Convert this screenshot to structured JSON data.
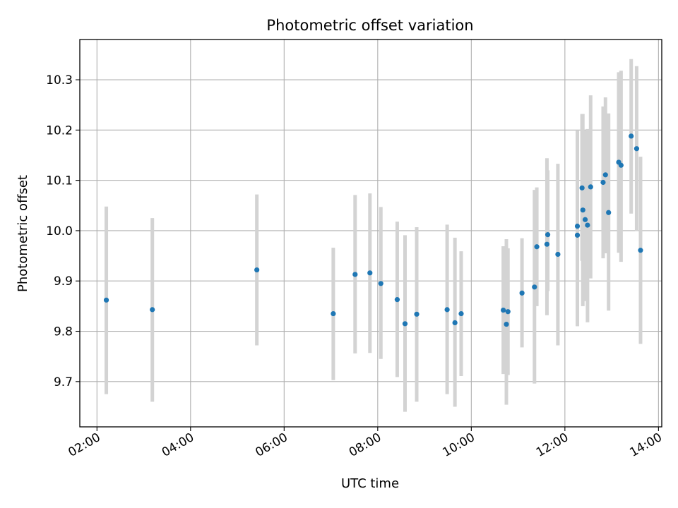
{
  "chart_data": {
    "type": "scatter",
    "title": "Photometric offset variation",
    "xlabel": "UTC time",
    "ylabel": "Photometric offset",
    "x_ticks": [
      "02:00",
      "04:00",
      "06:00",
      "08:00",
      "10:00",
      "12:00",
      "14:00"
    ],
    "y_ticks": [
      "9.7",
      "9.8",
      "9.9",
      "10.0",
      "10.1",
      "10.2",
      "10.3"
    ],
    "x_tick_values": [
      2,
      4,
      6,
      8,
      10,
      12,
      14
    ],
    "y_tick_values": [
      9.7,
      9.8,
      9.9,
      10.0,
      10.1,
      10.2,
      10.3
    ],
    "xlim": [
      "01:38",
      "14:00"
    ],
    "ylim": [
      9.61,
      10.38
    ],
    "grid": true,
    "colors": {
      "point": "#1f77b4",
      "errorbar": "#d3d3d3",
      "grid": "#b0b0b0",
      "axes": "#000000"
    },
    "points": [
      {
        "x": "02:12",
        "y": 9.862,
        "lo": 9.675,
        "hi": 10.048
      },
      {
        "x": "03:11",
        "y": 9.843,
        "lo": 9.66,
        "hi": 10.025
      },
      {
        "x": "05:25",
        "y": 9.922,
        "lo": 9.772,
        "hi": 10.072
      },
      {
        "x": "07:03",
        "y": 9.835,
        "lo": 9.703,
        "hi": 9.966
      },
      {
        "x": "07:31",
        "y": 9.913,
        "lo": 9.756,
        "hi": 10.071
      },
      {
        "x": "07:50",
        "y": 9.916,
        "lo": 9.757,
        "hi": 10.074
      },
      {
        "x": "08:04",
        "y": 9.895,
        "lo": 9.745,
        "hi": 10.047
      },
      {
        "x": "08:25",
        "y": 9.863,
        "lo": 9.709,
        "hi": 10.018
      },
      {
        "x": "08:35",
        "y": 9.815,
        "lo": 9.64,
        "hi": 9.991
      },
      {
        "x": "08:50",
        "y": 9.834,
        "lo": 9.66,
        "hi": 10.007
      },
      {
        "x": "09:29",
        "y": 9.843,
        "lo": 9.675,
        "hi": 10.012
      },
      {
        "x": "09:39",
        "y": 9.817,
        "lo": 9.65,
        "hi": 9.986
      },
      {
        "x": "09:47",
        "y": 9.835,
        "lo": 9.711,
        "hi": 9.959
      },
      {
        "x": "10:41",
        "y": 9.842,
        "lo": 9.715,
        "hi": 9.969
      },
      {
        "x": "10:45",
        "y": 9.814,
        "lo": 9.654,
        "hi": 9.983
      },
      {
        "x": "10:47",
        "y": 9.839,
        "lo": 9.713,
        "hi": 9.965
      },
      {
        "x": "11:05",
        "y": 9.876,
        "lo": 9.768,
        "hi": 9.985
      },
      {
        "x": "11:21",
        "y": 9.888,
        "lo": 9.696,
        "hi": 10.081
      },
      {
        "x": "11:24",
        "y": 9.968,
        "lo": 9.85,
        "hi": 10.086
      },
      {
        "x": "11:37",
        "y": 9.973,
        "lo": 9.832,
        "hi": 10.144
      },
      {
        "x": "11:38",
        "y": 9.992,
        "lo": 9.88,
        "hi": 10.12
      },
      {
        "x": "11:51",
        "y": 9.953,
        "lo": 9.772,
        "hi": 10.133
      },
      {
        "x": "12:16",
        "y": 9.991,
        "lo": 9.81,
        "hi": 10.172
      },
      {
        "x": "12:16",
        "y": 10.009,
        "lo": 9.815,
        "hi": 10.2
      },
      {
        "x": "12:22",
        "y": 10.085,
        "lo": 9.94,
        "hi": 10.232
      },
      {
        "x": "12:23",
        "y": 10.041,
        "lo": 9.85,
        "hi": 10.232
      },
      {
        "x": "12:26",
        "y": 10.022,
        "lo": 9.86,
        "hi": 10.2
      },
      {
        "x": "12:29",
        "y": 10.011,
        "lo": 9.818,
        "hi": 10.202
      },
      {
        "x": "12:33",
        "y": 10.087,
        "lo": 9.905,
        "hi": 10.269
      },
      {
        "x": "12:49",
        "y": 10.096,
        "lo": 9.945,
        "hi": 10.247
      },
      {
        "x": "12:52",
        "y": 10.111,
        "lo": 9.955,
        "hi": 10.265
      },
      {
        "x": "12:56",
        "y": 10.036,
        "lo": 9.841,
        "hi": 10.233
      },
      {
        "x": "13:09",
        "y": 10.136,
        "lo": 9.956,
        "hi": 10.315
      },
      {
        "x": "13:12",
        "y": 10.13,
        "lo": 9.938,
        "hi": 10.318
      },
      {
        "x": "13:25",
        "y": 10.188,
        "lo": 10.034,
        "hi": 10.341
      },
      {
        "x": "13:32",
        "y": 10.163,
        "lo": 9.999,
        "hi": 10.327
      },
      {
        "x": "13:37",
        "y": 9.961,
        "lo": 9.775,
        "hi": 10.147
      }
    ]
  }
}
